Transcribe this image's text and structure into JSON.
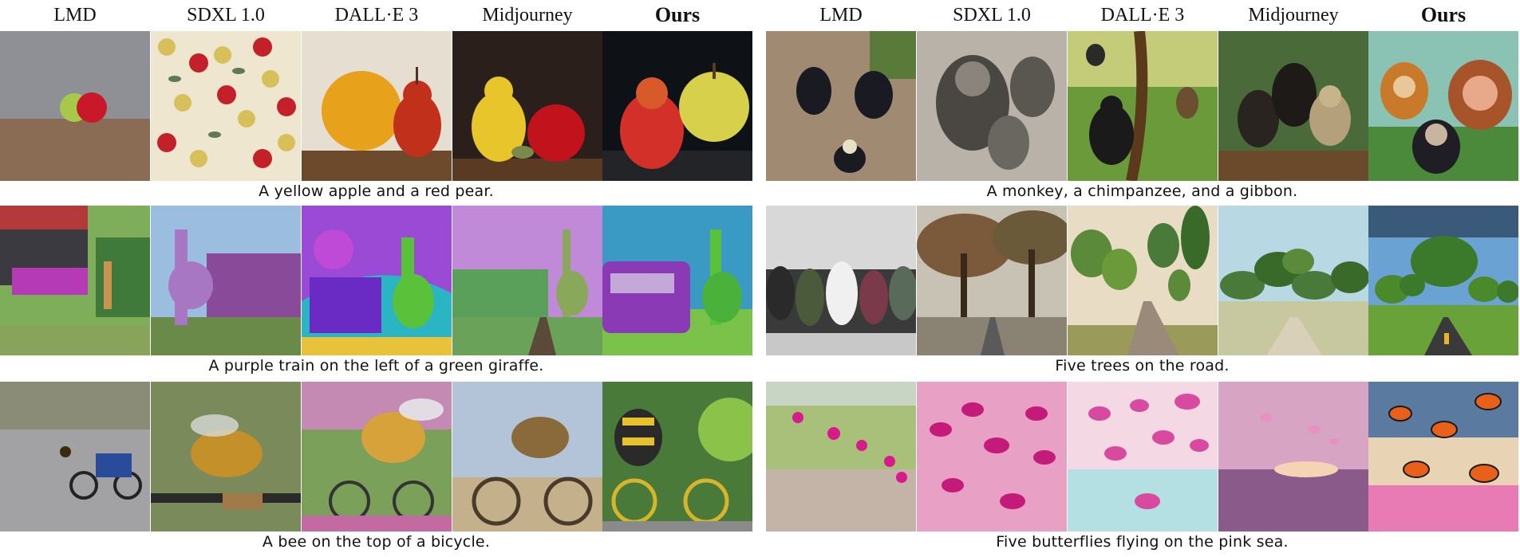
{
  "methods": [
    "LMD",
    "SDXL 1.0",
    "DALL·E 3",
    "Midjourney",
    "Ours"
  ],
  "left_panel": {
    "rows": [
      {
        "caption": "A yellow apple and a red pear."
      },
      {
        "caption": "A purple train on the left of a green giraffe."
      },
      {
        "caption": "A bee on the top of a bicycle."
      }
    ]
  },
  "right_panel": {
    "rows": [
      {
        "caption": "A monkey, a chimpanzee, and a gibbon."
      },
      {
        "caption": "Five trees on the road."
      },
      {
        "caption": "Five butterflies flying on the pink sea."
      }
    ]
  },
  "colors": {
    "text": "#111111",
    "background": "#ffffff"
  }
}
